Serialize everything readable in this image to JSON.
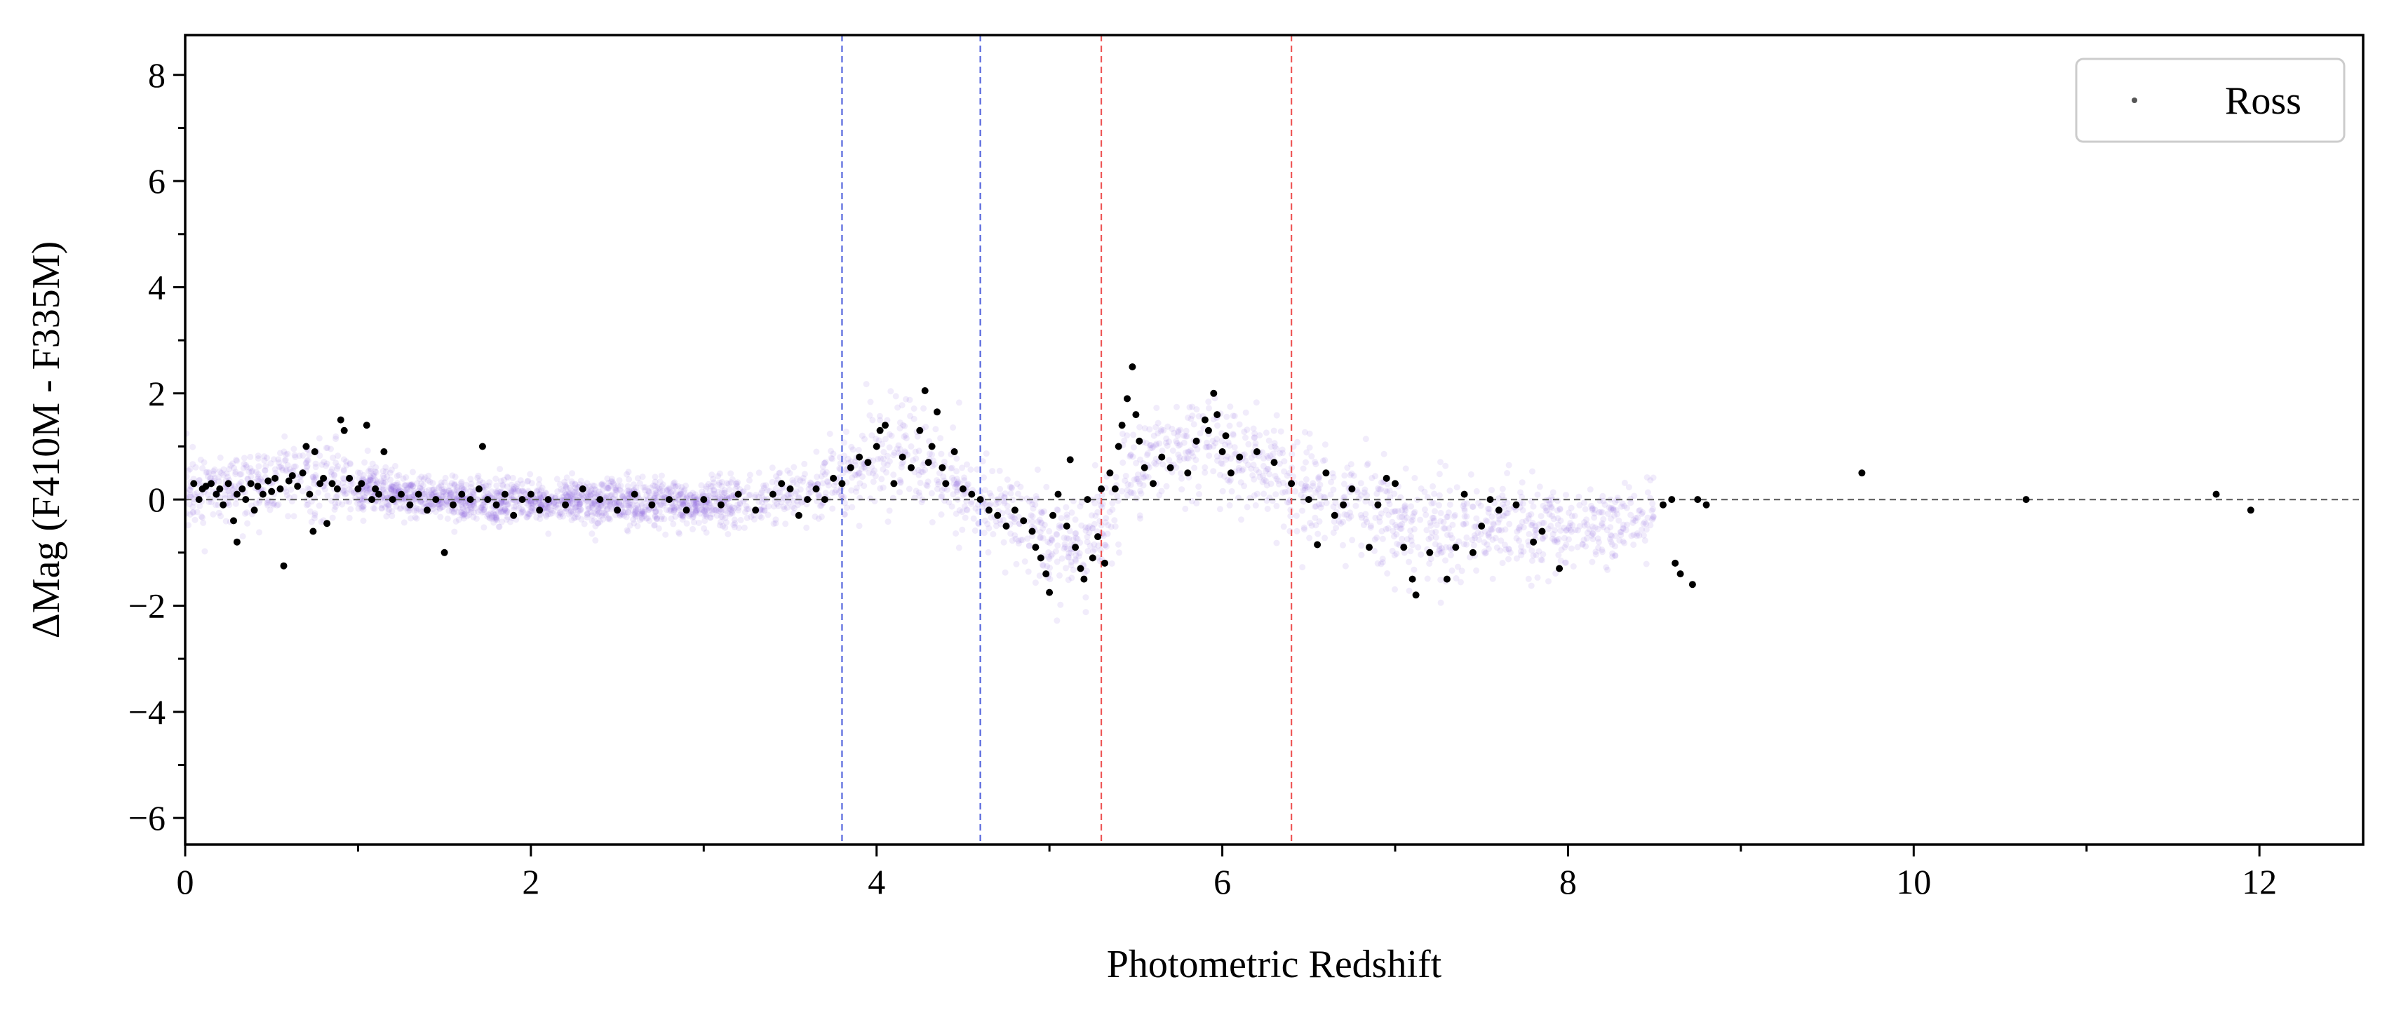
{
  "chart_data": {
    "type": "scatter",
    "title": "",
    "xlabel": "Photometric Redshift",
    "ylabel": "ΔMag (F410M - F335M)",
    "xlim": [
      0,
      12.6
    ],
    "ylim": [
      -6.5,
      8.75
    ],
    "x_ticks": [
      0,
      2,
      4,
      6,
      8,
      10,
      12
    ],
    "y_ticks": [
      -6,
      -4,
      -2,
      0,
      2,
      4,
      6,
      8
    ],
    "x_tick_labels": [
      "0",
      "2",
      "4",
      "6",
      "8",
      "10",
      "12"
    ],
    "y_tick_labels": [
      "−6",
      "−4",
      "−2",
      "0",
      "2",
      "4",
      "6",
      "8"
    ],
    "grid": false,
    "legend": {
      "position": "top-right",
      "entries": [
        "Ross"
      ]
    },
    "reference_lines": {
      "horizontal": [
        {
          "y": 0,
          "color": "#666666",
          "style": "dashed"
        }
      ],
      "vertical": [
        {
          "x": 3.8,
          "color": "#5566dd",
          "style": "dashed"
        },
        {
          "x": 4.6,
          "color": "#5566dd",
          "style": "dashed"
        },
        {
          "x": 5.3,
          "color": "#ee5555",
          "style": "dashed"
        },
        {
          "x": 6.4,
          "color": "#ee5555",
          "style": "dashed"
        }
      ]
    },
    "background_trend": {
      "color": "#8866dd",
      "x": [
        0.0,
        0.3,
        0.6,
        0.8,
        1.0,
        1.5,
        2.0,
        2.5,
        3.0,
        3.4,
        3.8,
        4.0,
        4.3,
        4.6,
        4.8,
        5.0,
        5.2,
        5.3,
        5.5,
        5.7,
        6.0,
        6.3,
        6.6,
        7.0,
        7.5,
        8.0,
        8.5
      ],
      "center": [
        0.2,
        0.25,
        0.35,
        0.4,
        0.2,
        0.0,
        -0.05,
        -0.05,
        -0.1,
        0.0,
        0.3,
        0.9,
        0.7,
        0.0,
        -0.3,
        -0.8,
        -0.9,
        -0.4,
        0.6,
        0.9,
        1.0,
        0.5,
        0.0,
        -0.4,
        -0.6,
        -0.5,
        -0.4
      ],
      "spread": [
        0.7,
        0.5,
        0.7,
        0.8,
        0.45,
        0.35,
        0.35,
        0.4,
        0.4,
        0.45,
        0.6,
        0.8,
        0.8,
        0.7,
        0.7,
        0.8,
        0.8,
        0.9,
        0.8,
        0.8,
        0.9,
        0.9,
        0.9,
        0.9,
        0.8,
        0.7,
        0.7
      ]
    },
    "series": [
      {
        "name": "Ross",
        "color": "#000000",
        "points": [
          [
            0.05,
            0.3
          ],
          [
            0.08,
            0.0
          ],
          [
            0.1,
            0.2
          ],
          [
            0.12,
            0.25
          ],
          [
            0.15,
            0.3
          ],
          [
            0.18,
            0.1
          ],
          [
            0.2,
            0.2
          ],
          [
            0.22,
            -0.1
          ],
          [
            0.25,
            0.3
          ],
          [
            0.28,
            -0.4
          ],
          [
            0.3,
            0.1
          ],
          [
            0.3,
            -0.8
          ],
          [
            0.33,
            0.2
          ],
          [
            0.35,
            0.0
          ],
          [
            0.38,
            0.3
          ],
          [
            0.4,
            -0.2
          ],
          [
            0.42,
            0.25
          ],
          [
            0.45,
            0.1
          ],
          [
            0.48,
            0.35
          ],
          [
            0.5,
            0.15
          ],
          [
            0.52,
            0.4
          ],
          [
            0.55,
            0.2
          ],
          [
            0.57,
            -1.25
          ],
          [
            0.6,
            0.35
          ],
          [
            0.62,
            0.45
          ],
          [
            0.65,
            0.25
          ],
          [
            0.68,
            0.5
          ],
          [
            0.7,
            1.0
          ],
          [
            0.72,
            0.1
          ],
          [
            0.74,
            -0.6
          ],
          [
            0.75,
            0.9
          ],
          [
            0.78,
            0.3
          ],
          [
            0.8,
            0.4
          ],
          [
            0.82,
            -0.45
          ],
          [
            0.85,
            0.3
          ],
          [
            0.88,
            0.2
          ],
          [
            0.9,
            1.5
          ],
          [
            0.92,
            1.3
          ],
          [
            0.95,
            0.4
          ],
          [
            1.0,
            0.2
          ],
          [
            1.02,
            0.3
          ],
          [
            1.05,
            1.4
          ],
          [
            1.08,
            0.0
          ],
          [
            1.1,
            0.2
          ],
          [
            1.12,
            0.1
          ],
          [
            1.15,
            0.9
          ],
          [
            1.2,
            0.0
          ],
          [
            1.25,
            0.1
          ],
          [
            1.3,
            -0.1
          ],
          [
            1.35,
            0.1
          ],
          [
            1.4,
            -0.2
          ],
          [
            1.45,
            0.0
          ],
          [
            1.5,
            -1.0
          ],
          [
            1.55,
            -0.1
          ],
          [
            1.6,
            0.1
          ],
          [
            1.65,
            0.0
          ],
          [
            1.7,
            0.2
          ],
          [
            1.72,
            1.0
          ],
          [
            1.75,
            0.0
          ],
          [
            1.8,
            -0.1
          ],
          [
            1.85,
            0.1
          ],
          [
            1.9,
            -0.3
          ],
          [
            1.95,
            0.0
          ],
          [
            2.0,
            0.1
          ],
          [
            2.05,
            -0.2
          ],
          [
            2.1,
            0.0
          ],
          [
            2.2,
            -0.1
          ],
          [
            2.3,
            0.2
          ],
          [
            2.4,
            0.0
          ],
          [
            2.5,
            -0.2
          ],
          [
            2.6,
            0.1
          ],
          [
            2.7,
            -0.1
          ],
          [
            2.8,
            0.0
          ],
          [
            2.9,
            -0.2
          ],
          [
            3.0,
            0.0
          ],
          [
            3.1,
            -0.1
          ],
          [
            3.2,
            0.1
          ],
          [
            3.3,
            -0.2
          ],
          [
            3.4,
            0.1
          ],
          [
            3.45,
            0.3
          ],
          [
            3.5,
            0.2
          ],
          [
            3.55,
            -0.3
          ],
          [
            3.6,
            0.0
          ],
          [
            3.65,
            0.2
          ],
          [
            3.7,
            0.0
          ],
          [
            3.75,
            0.4
          ],
          [
            3.8,
            0.3
          ],
          [
            3.85,
            0.6
          ],
          [
            3.9,
            0.8
          ],
          [
            3.95,
            0.7
          ],
          [
            4.0,
            1.0
          ],
          [
            4.02,
            1.3
          ],
          [
            4.05,
            1.4
          ],
          [
            4.1,
            0.3
          ],
          [
            4.15,
            0.8
          ],
          [
            4.2,
            0.6
          ],
          [
            4.25,
            1.3
          ],
          [
            4.28,
            2.05
          ],
          [
            4.3,
            0.7
          ],
          [
            4.32,
            1.0
          ],
          [
            4.35,
            1.65
          ],
          [
            4.38,
            0.6
          ],
          [
            4.4,
            0.3
          ],
          [
            4.45,
            0.9
          ],
          [
            4.5,
            0.2
          ],
          [
            4.55,
            0.1
          ],
          [
            4.6,
            0.0
          ],
          [
            4.65,
            -0.2
          ],
          [
            4.7,
            -0.3
          ],
          [
            4.75,
            -0.5
          ],
          [
            4.8,
            -0.2
          ],
          [
            4.85,
            -0.4
          ],
          [
            4.9,
            -0.6
          ],
          [
            4.92,
            -0.9
          ],
          [
            4.95,
            -1.1
          ],
          [
            4.98,
            -1.4
          ],
          [
            5.0,
            -1.75
          ],
          [
            5.02,
            -0.3
          ],
          [
            5.05,
            0.1
          ],
          [
            5.1,
            -0.5
          ],
          [
            5.12,
            0.75
          ],
          [
            5.15,
            -0.9
          ],
          [
            5.18,
            -1.3
          ],
          [
            5.2,
            -1.5
          ],
          [
            5.22,
            0.0
          ],
          [
            5.25,
            -1.1
          ],
          [
            5.28,
            -0.7
          ],
          [
            5.3,
            0.2
          ],
          [
            5.32,
            -1.2
          ],
          [
            5.35,
            0.5
          ],
          [
            5.38,
            0.2
          ],
          [
            5.4,
            1.0
          ],
          [
            5.42,
            1.4
          ],
          [
            5.45,
            1.9
          ],
          [
            5.48,
            2.5
          ],
          [
            5.5,
            1.6
          ],
          [
            5.52,
            1.1
          ],
          [
            5.55,
            0.6
          ],
          [
            5.6,
            0.3
          ],
          [
            5.65,
            0.8
          ],
          [
            5.7,
            0.6
          ],
          [
            5.8,
            0.5
          ],
          [
            5.85,
            1.1
          ],
          [
            5.9,
            1.5
          ],
          [
            5.92,
            1.3
          ],
          [
            5.95,
            2.0
          ],
          [
            5.97,
            1.6
          ],
          [
            6.0,
            0.9
          ],
          [
            6.02,
            1.2
          ],
          [
            6.05,
            0.5
          ],
          [
            6.1,
            0.8
          ],
          [
            6.2,
            0.9
          ],
          [
            6.3,
            0.7
          ],
          [
            6.4,
            0.3
          ],
          [
            6.5,
            0.0
          ],
          [
            6.55,
            -0.85
          ],
          [
            6.6,
            0.5
          ],
          [
            6.65,
            -0.3
          ],
          [
            6.7,
            -0.1
          ],
          [
            6.75,
            0.2
          ],
          [
            6.85,
            -0.9
          ],
          [
            6.9,
            -0.1
          ],
          [
            6.95,
            0.4
          ],
          [
            7.0,
            0.3
          ],
          [
            7.05,
            -0.9
          ],
          [
            7.1,
            -1.5
          ],
          [
            7.12,
            -1.8
          ],
          [
            7.2,
            -1.0
          ],
          [
            7.3,
            -1.5
          ],
          [
            7.35,
            -0.9
          ],
          [
            7.4,
            0.1
          ],
          [
            7.45,
            -1.0
          ],
          [
            7.5,
            -0.5
          ],
          [
            7.55,
            0.0
          ],
          [
            7.6,
            -0.2
          ],
          [
            7.7,
            -0.1
          ],
          [
            7.8,
            -0.8
          ],
          [
            7.85,
            -0.6
          ],
          [
            7.95,
            -1.3
          ],
          [
            8.55,
            -0.1
          ],
          [
            8.6,
            0.0
          ],
          [
            8.62,
            -1.2
          ],
          [
            8.65,
            -1.4
          ],
          [
            8.72,
            -1.6
          ],
          [
            8.75,
            0.0
          ],
          [
            8.8,
            -0.1
          ],
          [
            9.7,
            0.5
          ],
          [
            10.65,
            0.0
          ],
          [
            11.75,
            0.1
          ],
          [
            11.95,
            -0.2
          ]
        ]
      }
    ]
  }
}
